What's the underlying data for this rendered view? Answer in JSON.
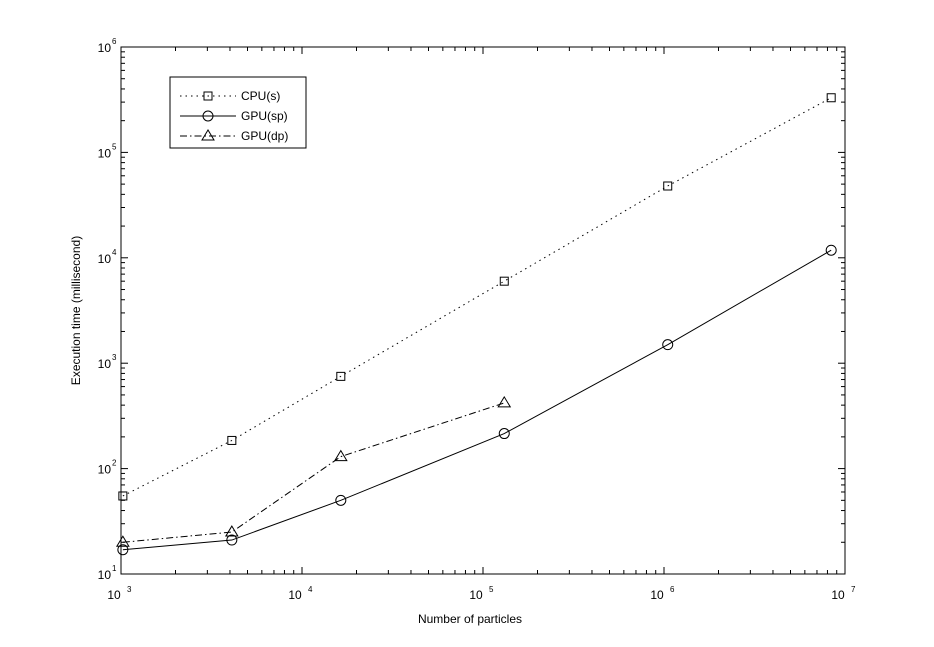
{
  "chart_data": {
    "type": "line",
    "xlabel": "Number of particles",
    "ylabel": "Execution time (millisecond)",
    "x_scale": "log",
    "y_scale": "log",
    "xlim": [
      1000,
      10000000
    ],
    "ylim": [
      10,
      1000000
    ],
    "x_ticks": [
      {
        "base": "10",
        "exp": "3",
        "value": 1000
      },
      {
        "base": "10",
        "exp": "4",
        "value": 10000
      },
      {
        "base": "10",
        "exp": "5",
        "value": 100000
      },
      {
        "base": "10",
        "exp": "6",
        "value": 1000000
      },
      {
        "base": "10",
        "exp": "7",
        "value": 10000000
      }
    ],
    "y_ticks": [
      {
        "base": "10",
        "exp": "1",
        "value": 10
      },
      {
        "base": "10",
        "exp": "2",
        "value": 100
      },
      {
        "base": "10",
        "exp": "3",
        "value": 1000
      },
      {
        "base": "10",
        "exp": "4",
        "value": 10000
      },
      {
        "base": "10",
        "exp": "5",
        "value": 100000
      },
      {
        "base": "10",
        "exp": "6",
        "value": 1000000
      }
    ],
    "grid": false,
    "legend_position": "top-left",
    "series": [
      {
        "name": "CPU(s)",
        "line_style": "dotted",
        "marker": "square",
        "color": "#000000",
        "x": [
          1024,
          4096,
          16384,
          131072,
          1048576,
          8388608
        ],
        "y": [
          55,
          185,
          750,
          6000,
          48000,
          330000
        ]
      },
      {
        "name": "GPU(sp)",
        "line_style": "solid",
        "marker": "circle",
        "color": "#000000",
        "x": [
          1024,
          4096,
          16384,
          131072,
          1048576,
          8388608
        ],
        "y": [
          17,
          21,
          50,
          215,
          1500,
          11800
        ]
      },
      {
        "name": "GPU(dp)",
        "line_style": "dash-dot",
        "marker": "triangle",
        "color": "#000000",
        "x": [
          1024,
          4096,
          16384,
          131072
        ],
        "y": [
          20,
          25,
          130,
          420
        ]
      }
    ]
  }
}
